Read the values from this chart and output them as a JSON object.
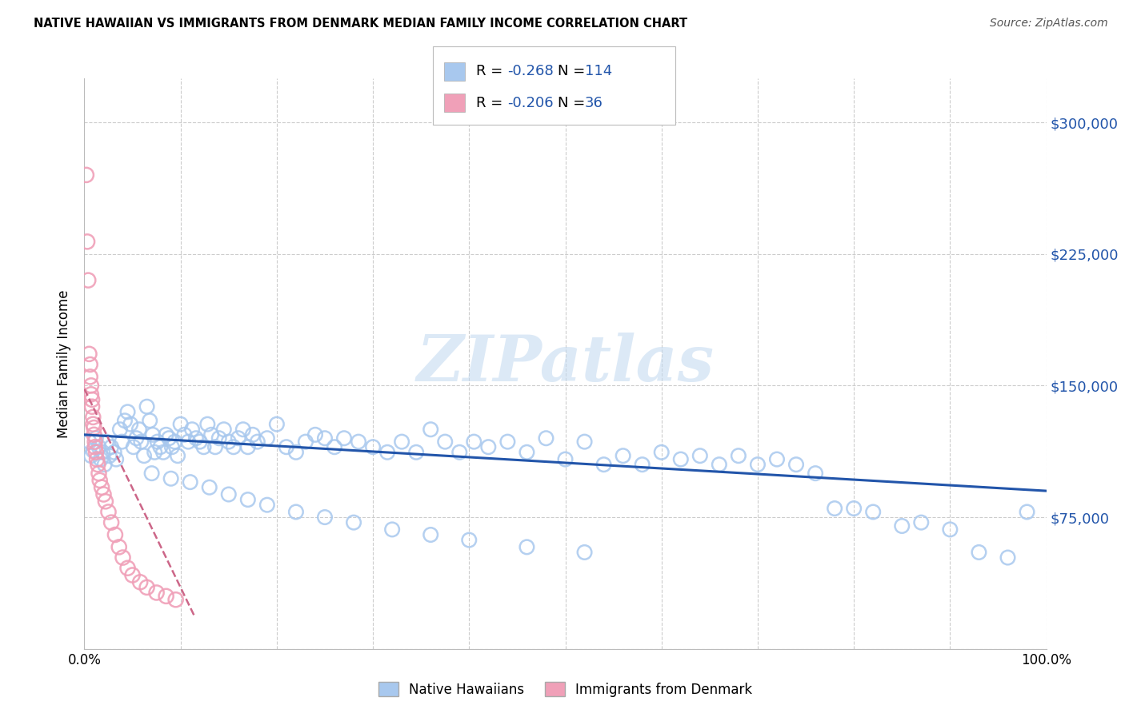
{
  "title": "NATIVE HAWAIIAN VS IMMIGRANTS FROM DENMARK MEDIAN FAMILY INCOME CORRELATION CHART",
  "source": "Source: ZipAtlas.com",
  "ylabel": "Median Family Income",
  "xlim": [
    0.0,
    1.0
  ],
  "ylim": [
    0,
    325000
  ],
  "yticks": [
    0,
    75000,
    150000,
    225000,
    300000
  ],
  "ytick_labels": [
    "",
    "$75,000",
    "$150,000",
    "$225,000",
    "$300,000"
  ],
  "legend_R1": "-0.268",
  "legend_N1": "114",
  "legend_R2": "-0.206",
  "legend_N2": "36",
  "color_blue": "#A8C8EE",
  "color_pink": "#F0A0B8",
  "color_blue_line": "#2255AA",
  "color_pink_line": "#CC6688",
  "color_grid": "#CCCCCC",
  "watermark": "ZIPatlas",
  "blue_trend_x0": 0.0,
  "blue_trend_y0": 122000,
  "blue_trend_x1": 1.0,
  "blue_trend_y1": 90000,
  "pink_trend_x0": 0.0,
  "pink_trend_y0": 148000,
  "pink_trend_x1": 0.115,
  "pink_trend_y1": 18000,
  "blue_x": [
    0.005,
    0.007,
    0.009,
    0.012,
    0.015,
    0.017,
    0.019,
    0.021,
    0.023,
    0.026,
    0.028,
    0.031,
    0.033,
    0.037,
    0.039,
    0.042,
    0.045,
    0.048,
    0.051,
    0.054,
    0.057,
    0.059,
    0.062,
    0.065,
    0.068,
    0.071,
    0.073,
    0.076,
    0.079,
    0.082,
    0.085,
    0.088,
    0.091,
    0.094,
    0.097,
    0.1,
    0.104,
    0.108,
    0.112,
    0.116,
    0.12,
    0.124,
    0.128,
    0.132,
    0.136,
    0.14,
    0.145,
    0.15,
    0.155,
    0.16,
    0.165,
    0.17,
    0.175,
    0.18,
    0.19,
    0.2,
    0.21,
    0.22,
    0.23,
    0.24,
    0.25,
    0.26,
    0.27,
    0.285,
    0.3,
    0.315,
    0.33,
    0.345,
    0.36,
    0.375,
    0.39,
    0.405,
    0.42,
    0.44,
    0.46,
    0.48,
    0.5,
    0.52,
    0.54,
    0.56,
    0.58,
    0.6,
    0.62,
    0.64,
    0.66,
    0.68,
    0.7,
    0.72,
    0.74,
    0.76,
    0.78,
    0.8,
    0.82,
    0.85,
    0.87,
    0.9,
    0.93,
    0.96,
    0.98,
    0.07,
    0.09,
    0.11,
    0.13,
    0.15,
    0.17,
    0.19,
    0.22,
    0.25,
    0.28,
    0.32,
    0.36,
    0.4,
    0.46,
    0.52
  ],
  "blue_y": [
    118000,
    110000,
    113000,
    120000,
    115000,
    108000,
    112000,
    105000,
    118000,
    110000,
    115000,
    112000,
    108000,
    125000,
    118000,
    130000,
    135000,
    128000,
    115000,
    120000,
    125000,
    118000,
    110000,
    138000,
    130000,
    122000,
    112000,
    118000,
    115000,
    112000,
    122000,
    120000,
    115000,
    118000,
    110000,
    128000,
    122000,
    118000,
    125000,
    120000,
    118000,
    115000,
    128000,
    122000,
    115000,
    120000,
    125000,
    118000,
    115000,
    120000,
    125000,
    115000,
    122000,
    118000,
    120000,
    128000,
    115000,
    112000,
    118000,
    122000,
    120000,
    115000,
    120000,
    118000,
    115000,
    112000,
    118000,
    112000,
    125000,
    118000,
    112000,
    118000,
    115000,
    118000,
    112000,
    120000,
    108000,
    118000,
    105000,
    110000,
    105000,
    112000,
    108000,
    110000,
    105000,
    110000,
    105000,
    108000,
    105000,
    100000,
    80000,
    80000,
    78000,
    70000,
    72000,
    68000,
    55000,
    52000,
    78000,
    100000,
    97000,
    95000,
    92000,
    88000,
    85000,
    82000,
    78000,
    75000,
    72000,
    68000,
    65000,
    62000,
    58000,
    55000
  ],
  "pink_x": [
    0.002,
    0.003,
    0.004,
    0.005,
    0.006,
    0.006,
    0.007,
    0.007,
    0.008,
    0.008,
    0.009,
    0.009,
    0.01,
    0.01,
    0.011,
    0.011,
    0.012,
    0.013,
    0.014,
    0.015,
    0.016,
    0.018,
    0.02,
    0.022,
    0.025,
    0.028,
    0.032,
    0.036,
    0.04,
    0.045,
    0.05,
    0.058,
    0.065,
    0.075,
    0.085,
    0.095
  ],
  "pink_y": [
    270000,
    232000,
    210000,
    168000,
    162000,
    155000,
    150000,
    145000,
    142000,
    138000,
    132000,
    128000,
    126000,
    122000,
    118000,
    115000,
    112000,
    108000,
    105000,
    100000,
    96000,
    92000,
    88000,
    84000,
    78000,
    72000,
    65000,
    58000,
    52000,
    46000,
    42000,
    38000,
    35000,
    32000,
    30000,
    28000
  ]
}
